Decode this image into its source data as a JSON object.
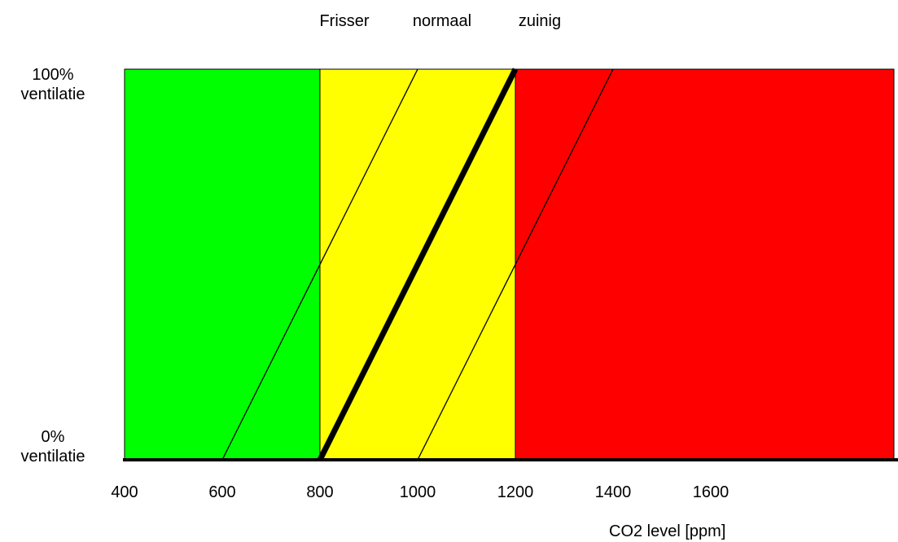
{
  "chart_data": {
    "type": "line",
    "title": "",
    "xlabel": "CO2 level [ppm]",
    "ylabel": "",
    "x_ticks": [
      400,
      600,
      800,
      1000,
      1200,
      1400,
      1600
    ],
    "xlim": [
      400,
      1975
    ],
    "ylim": [
      0,
      100
    ],
    "y_labels": {
      "top": [
        "100%",
        "ventilatie"
      ],
      "bottom": [
        "0%",
        "ventilatie"
      ]
    },
    "zones": [
      {
        "from": 400,
        "to": 800,
        "color": "#00ff00"
      },
      {
        "from": 800,
        "to": 1200,
        "color": "#ffff00"
      },
      {
        "from": 1200,
        "to": 1975,
        "color": "#ff0000"
      }
    ],
    "series": [
      {
        "name": "Frisser",
        "x": [
          600,
          1000
        ],
        "y": [
          0,
          100
        ],
        "emphasis": false
      },
      {
        "name": "normaal",
        "x": [
          800,
          1200
        ],
        "y": [
          0,
          100
        ],
        "emphasis": true
      },
      {
        "name": "zuinig",
        "x": [
          1000,
          1400
        ],
        "y": [
          0,
          100
        ],
        "emphasis": false
      }
    ],
    "grid": false,
    "legend": "top"
  }
}
